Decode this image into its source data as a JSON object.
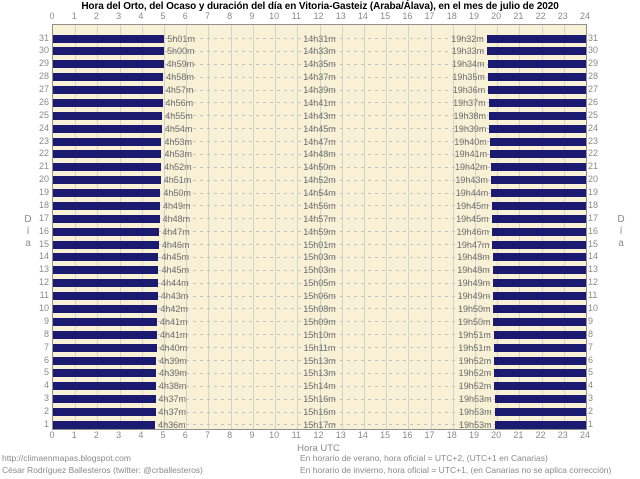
{
  "header": {
    "title": "Hora del Orto, del Ocaso y duración del día en Vitoria-Gasteiz (Araba/Álava), en el mes de julio de 2020"
  },
  "footer": {
    "url": "http://climaenmapas.blogspot.com",
    "author": "César Rodríguez Ballesteros (twitter: @crballesteros)",
    "summer_note": "En horario de verano, hora oficial = UTC+2, (UTC+1 en Canarias)",
    "winter_note": "En horario de invierno, hora oficial = UTC+1, (en Canarias no se aplica corrección)"
  },
  "chart_data": {
    "type": "bar",
    "title": "Hora del Orto, del Ocaso y duración del día en Vitoria-Gasteiz (Araba/Álava), en el mes de julio de 2020",
    "xlabel": "Hora UTC",
    "ylabel": "Día",
    "xlim": [
      0,
      24
    ],
    "x_ticks": [
      0,
      1,
      2,
      3,
      4,
      5,
      6,
      7,
      8,
      9,
      10,
      11,
      12,
      13,
      14,
      15,
      16,
      17,
      18,
      19,
      20,
      21,
      22,
      23,
      24
    ],
    "grid": "on",
    "legend": "none",
    "colors": {
      "night_bar": "#1A1A70",
      "day_background": "#F8F1D5",
      "grid_solid": "#D2D2D2",
      "grid_dashed": "#C3C3C3",
      "axis_text": "#8A8A8A",
      "value_text": "#6E6E6E",
      "title_text": "#000000"
    },
    "days": [
      {
        "day": 31,
        "sunrise": "5h01m",
        "duration": "14h31m",
        "sunset": "19h32m"
      },
      {
        "day": 30,
        "sunrise": "5h00m",
        "duration": "14h33m",
        "sunset": "19h33m"
      },
      {
        "day": 29,
        "sunrise": "4h59m",
        "duration": "14h35m",
        "sunset": "19h34m"
      },
      {
        "day": 28,
        "sunrise": "4h58m",
        "duration": "14h37m",
        "sunset": "19h35m"
      },
      {
        "day": 27,
        "sunrise": "4h57m",
        "duration": "14h39m",
        "sunset": "19h36m"
      },
      {
        "day": 26,
        "sunrise": "4h56m",
        "duration": "14h41m",
        "sunset": "19h37m"
      },
      {
        "day": 25,
        "sunrise": "4h55m",
        "duration": "14h43m",
        "sunset": "19h38m"
      },
      {
        "day": 24,
        "sunrise": "4h54m",
        "duration": "14h45m",
        "sunset": "19h39m"
      },
      {
        "day": 23,
        "sunrise": "4h53m",
        "duration": "14h47m",
        "sunset": "19h40m"
      },
      {
        "day": 22,
        "sunrise": "4h53m",
        "duration": "14h48m",
        "sunset": "19h41m"
      },
      {
        "day": 21,
        "sunrise": "4h52m",
        "duration": "14h50m",
        "sunset": "19h42m"
      },
      {
        "day": 20,
        "sunrise": "4h51m",
        "duration": "14h52m",
        "sunset": "19h43m"
      },
      {
        "day": 19,
        "sunrise": "4h50m",
        "duration": "14h54m",
        "sunset": "19h44m"
      },
      {
        "day": 18,
        "sunrise": "4h49m",
        "duration": "14h56m",
        "sunset": "19h45m"
      },
      {
        "day": 17,
        "sunrise": "4h48m",
        "duration": "14h57m",
        "sunset": "19h45m"
      },
      {
        "day": 16,
        "sunrise": "4h47m",
        "duration": "14h59m",
        "sunset": "19h46m"
      },
      {
        "day": 15,
        "sunrise": "4h46m",
        "duration": "15h01m",
        "sunset": "19h47m"
      },
      {
        "day": 14,
        "sunrise": "4h45m",
        "duration": "15h03m",
        "sunset": "19h48m"
      },
      {
        "day": 13,
        "sunrise": "4h45m",
        "duration": "15h03m",
        "sunset": "19h48m"
      },
      {
        "day": 12,
        "sunrise": "4h44m",
        "duration": "15h05m",
        "sunset": "19h49m"
      },
      {
        "day": 11,
        "sunrise": "4h43m",
        "duration": "15h06m",
        "sunset": "19h49m"
      },
      {
        "day": 10,
        "sunrise": "4h42m",
        "duration": "15h08m",
        "sunset": "19h50m"
      },
      {
        "day": 9,
        "sunrise": "4h41m",
        "duration": "15h09m",
        "sunset": "19h50m"
      },
      {
        "day": 8,
        "sunrise": "4h41m",
        "duration": "15h10m",
        "sunset": "19h51m"
      },
      {
        "day": 7,
        "sunrise": "4h40m",
        "duration": "15h11m",
        "sunset": "19h51m"
      },
      {
        "day": 6,
        "sunrise": "4h39m",
        "duration": "15h13m",
        "sunset": "19h52m"
      },
      {
        "day": 5,
        "sunrise": "4h39m",
        "duration": "15h13m",
        "sunset": "19h52m"
      },
      {
        "day": 4,
        "sunrise": "4h38m",
        "duration": "15h14m",
        "sunset": "19h52m"
      },
      {
        "day": 3,
        "sunrise": "4h37m",
        "duration": "15h16m",
        "sunset": "19h53m"
      },
      {
        "day": 2,
        "sunrise": "4h37m",
        "duration": "15h16m",
        "sunset": "19h53m"
      },
      {
        "day": 1,
        "sunrise": "4h36m",
        "duration": "15h17m",
        "sunset": "19h53m"
      }
    ]
  }
}
